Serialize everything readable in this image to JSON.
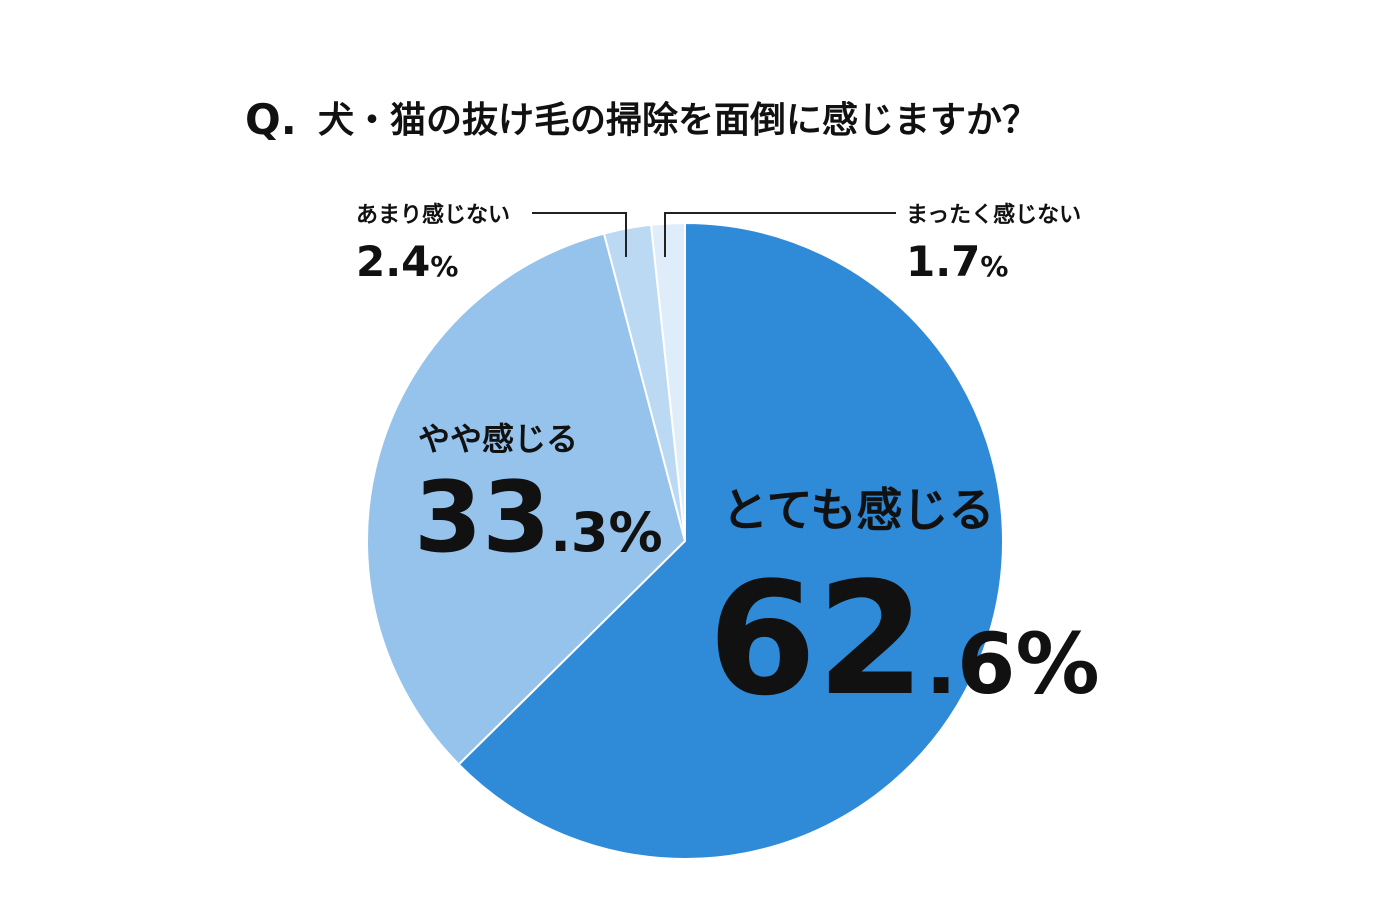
{
  "chart_data": {
    "type": "pie",
    "title_prefix": "Q.",
    "title": "犬・猫の抜け毛の掃除を面倒に感じますか？",
    "slices": [
      {
        "label": "とても感じる",
        "value": 62.6,
        "int": "62",
        "dec": ".6",
        "unit": "%",
        "color": "#2f8ad8"
      },
      {
        "label": "やや感じる",
        "value": 33.3,
        "int": "33",
        "dec": ".3",
        "unit": "%",
        "color": "#95c3ec"
      },
      {
        "label": "あまり感じない",
        "value": 2.4,
        "int": "2.4",
        "dec": "",
        "unit": "%",
        "color": "#bcd9f4"
      },
      {
        "label": "まったく感じない",
        "value": 1.7,
        "int": "1.7",
        "dec": "",
        "unit": "%",
        "color": "#dfedfb"
      }
    ]
  }
}
